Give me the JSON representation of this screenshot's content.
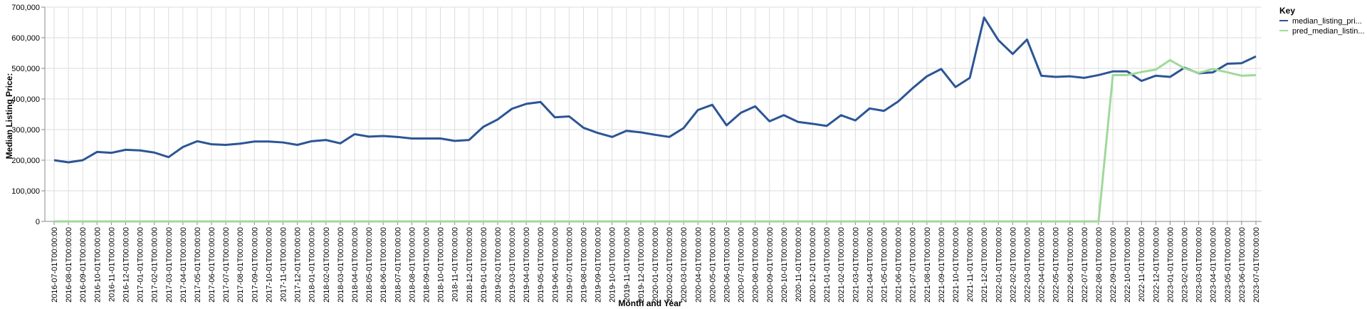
{
  "chart_data": {
    "type": "line",
    "xlabel": "Month and Year",
    "ylabel": "Median Listing Price:",
    "ylim": [
      0,
      700000
    ],
    "yticks": [
      0,
      100000,
      200000,
      300000,
      400000,
      500000,
      600000,
      700000
    ],
    "ytick_labels": [
      "0",
      "100,000",
      "200,000",
      "300,000",
      "400,000",
      "500,000",
      "600,000",
      "700,000"
    ],
    "grid": true,
    "legend": {
      "title": "Key",
      "position": "right"
    },
    "x": [
      "2016-07-01T00:00:00",
      "2016-08-01T00:00:00",
      "2016-09-01T00:00:00",
      "2016-10-01T00:00:00",
      "2016-11-01T00:00:00",
      "2016-12-01T00:00:00",
      "2017-01-01T00:00:00",
      "2017-02-01T00:00:00",
      "2017-03-01T00:00:00",
      "2017-04-01T00:00:00",
      "2017-05-01T00:00:00",
      "2017-06-01T00:00:00",
      "2017-07-01T00:00:00",
      "2017-08-01T00:00:00",
      "2017-09-01T00:00:00",
      "2017-10-01T00:00:00",
      "2017-11-01T00:00:00",
      "2017-12-01T00:00:00",
      "2018-01-01T00:00:00",
      "2018-02-01T00:00:00",
      "2018-03-01T00:00:00",
      "2018-04-01T00:00:00",
      "2018-05-01T00:00:00",
      "2018-06-01T00:00:00",
      "2018-07-01T00:00:00",
      "2018-08-01T00:00:00",
      "2018-09-01T00:00:00",
      "2018-10-01T00:00:00",
      "2018-11-01T00:00:00",
      "2018-12-01T00:00:00",
      "2019-01-01T00:00:00",
      "2019-02-01T00:00:00",
      "2019-03-01T00:00:00",
      "2019-04-01T00:00:00",
      "2019-05-01T00:00:00",
      "2019-06-01T00:00:00",
      "2019-07-01T00:00:00",
      "2019-08-01T00:00:00",
      "2019-09-01T00:00:00",
      "2019-10-01T00:00:00",
      "2019-11-01T00:00:00",
      "2019-12-01T00:00:00",
      "2020-01-01T00:00:00",
      "2020-02-01T00:00:00",
      "2020-03-01T00:00:00",
      "2020-04-01T00:00:00",
      "2020-05-01T00:00:00",
      "2020-06-01T00:00:00",
      "2020-07-01T00:00:00",
      "2020-08-01T00:00:00",
      "2020-09-01T00:00:00",
      "2020-10-01T00:00:00",
      "2020-11-01T00:00:00",
      "2020-12-01T00:00:00",
      "2021-01-01T00:00:00",
      "2021-02-01T00:00:00",
      "2021-03-01T00:00:00",
      "2021-04-01T00:00:00",
      "2021-05-01T00:00:00",
      "2021-06-01T00:00:00",
      "2021-07-01T00:00:00",
      "2021-08-01T00:00:00",
      "2021-09-01T00:00:00",
      "2021-10-01T00:00:00",
      "2021-11-01T00:00:00",
      "2021-12-01T00:00:00",
      "2022-01-01T00:00:00",
      "2022-02-01T00:00:00",
      "2022-03-01T00:00:00",
      "2022-04-01T00:00:00",
      "2022-05-01T00:00:00",
      "2022-06-01T00:00:00",
      "2022-07-01T00:00:00",
      "2022-08-01T00:00:00",
      "2022-09-01T00:00:00",
      "2022-10-01T00:00:00",
      "2022-11-01T00:00:00",
      "2022-12-01T00:00:00",
      "2023-01-01T00:00:00",
      "2023-02-01T00:00:00",
      "2023-03-01T00:00:00",
      "2023-04-01T00:00:00",
      "2023-05-01T00:00:00",
      "2023-06-01T00:00:00",
      "2023-07-01T00:00:00"
    ],
    "series": [
      {
        "name": "median_listing_pri...",
        "color": "#2c5596",
        "values": [
          200000,
          193000,
          200000,
          227000,
          224000,
          234000,
          232000,
          225000,
          210000,
          243000,
          262000,
          252000,
          250000,
          254000,
          261000,
          261000,
          258000,
          250000,
          262000,
          266000,
          255000,
          285000,
          277000,
          279000,
          276000,
          271000,
          271000,
          271000,
          263000,
          266000,
          309000,
          333000,
          368000,
          384000,
          390000,
          340000,
          343000,
          306000,
          289000,
          276000,
          296000,
          291000,
          283000,
          276000,
          305000,
          364000,
          381000,
          314000,
          355000,
          376000,
          327000,
          347000,
          325000,
          319000,
          312000,
          347000,
          330000,
          369000,
          361000,
          392000,
          435000,
          474000,
          498000,
          439000,
          469000,
          666000,
          592000,
          547000,
          594000,
          476000,
          472000,
          474000,
          469000,
          478000,
          490000,
          490000,
          459000,
          476000,
          472000,
          502000,
          484000,
          487000,
          515000,
          517000,
          539000
        ]
      },
      {
        "name": "pred_median_listin...",
        "color": "#a0d99a",
        "values": [
          0,
          0,
          0,
          0,
          0,
          0,
          0,
          0,
          0,
          0,
          0,
          0,
          0,
          0,
          0,
          0,
          0,
          0,
          0,
          0,
          0,
          0,
          0,
          0,
          0,
          0,
          0,
          0,
          0,
          0,
          0,
          0,
          0,
          0,
          0,
          0,
          0,
          0,
          0,
          0,
          0,
          0,
          0,
          0,
          0,
          0,
          0,
          0,
          0,
          0,
          0,
          0,
          0,
          0,
          0,
          0,
          0,
          0,
          0,
          0,
          0,
          0,
          0,
          0,
          0,
          0,
          0,
          0,
          0,
          0,
          0,
          0,
          0,
          0,
          478000,
          478000,
          488000,
          496000,
          527000,
          500000,
          485000,
          498000,
          487000,
          476000,
          478000
        ]
      }
    ]
  }
}
